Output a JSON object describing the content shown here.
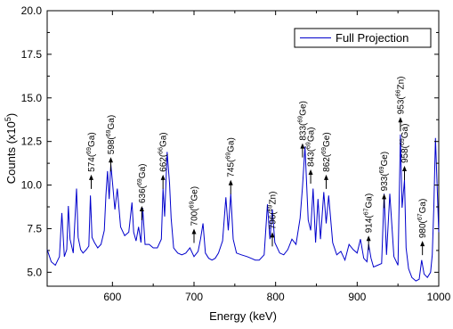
{
  "chart_data": {
    "type": "line",
    "xlabel": "Energy (keV)",
    "ylabel": "Counts (x10",
    "ylabel_sup": "5",
    "ylabel_tail": ")",
    "xlim": [
      520,
      1000
    ],
    "ylim": [
      4.2,
      20.0
    ],
    "xticks": [
      600,
      700,
      800,
      900,
      1000
    ],
    "yticks": [
      5.0,
      7.5,
      10.0,
      12.5,
      15.0,
      17.5,
      20.0
    ],
    "xtick_labels": [
      "600",
      "700",
      "800",
      "900",
      "1000"
    ],
    "ytick_labels": [
      "5.0",
      "7.5",
      "10.0",
      "12.5",
      "15.0",
      "17.5",
      "20.0"
    ],
    "line_color": "#0000cc",
    "series": [
      {
        "name": "Full Projection",
        "x": [
          520,
          525,
          530,
          535,
          538,
          541,
          544,
          546,
          548,
          552,
          556,
          558,
          561,
          564,
          568,
          571,
          573,
          575,
          578,
          582,
          586,
          590,
          592,
          594,
          596,
          598,
          600,
          603,
          606,
          610,
          615,
          620,
          624,
          626,
          629,
          632,
          635,
          637,
          640,
          645,
          650,
          655,
          660,
          662,
          664,
          667,
          670,
          672,
          675,
          680,
          685,
          690,
          695,
          700,
          705,
          708,
          711,
          714,
          718,
          722,
          726,
          730,
          735,
          739,
          742,
          745,
          748,
          752,
          758,
          765,
          770,
          775,
          780,
          786,
          790,
          793,
          796,
          799,
          805,
          810,
          815,
          820,
          825,
          830,
          833,
          836,
          840,
          843,
          846,
          849,
          852,
          855,
          859,
          862,
          865,
          870,
          875,
          880,
          885,
          890,
          895,
          900,
          904,
          908,
          912,
          914,
          917,
          920,
          925,
          930,
          933,
          936,
          940,
          945,
          950,
          953,
          955,
          958,
          960,
          963,
          967,
          972,
          976,
          979,
          982,
          986,
          990,
          992,
          994,
          996,
          1000
        ],
        "y": [
          6.3,
          5.6,
          5.4,
          5.9,
          8.4,
          5.9,
          6.3,
          8.8,
          6.9,
          6.1,
          9.8,
          7.0,
          6.3,
          6.1,
          6.3,
          6.5,
          9.4,
          7.0,
          6.7,
          6.4,
          6.6,
          7.4,
          9.4,
          10.8,
          9.2,
          11.2,
          10.2,
          8.6,
          9.8,
          7.6,
          7.1,
          7.3,
          9.0,
          7.3,
          6.8,
          7.6,
          6.7,
          8.7,
          6.6,
          6.6,
          6.4,
          6.4,
          6.9,
          9.8,
          8.2,
          11.9,
          10.1,
          8.1,
          6.4,
          6.1,
          6.0,
          6.1,
          6.4,
          5.9,
          6.2,
          6.9,
          7.8,
          6.1,
          5.8,
          5.7,
          5.8,
          6.1,
          6.8,
          9.3,
          7.4,
          9.5,
          6.9,
          6.1,
          6.0,
          5.9,
          5.8,
          5.7,
          5.7,
          6.0,
          8.9,
          6.9,
          8.6,
          6.7,
          6.1,
          6.0,
          6.3,
          6.9,
          6.6,
          8.1,
          9.9,
          12.2,
          8.0,
          7.4,
          9.8,
          6.7,
          9.2,
          6.9,
          9.6,
          7.8,
          9.4,
          6.7,
          6.0,
          6.2,
          5.7,
          6.6,
          6.3,
          6.1,
          6.9,
          5.8,
          5.6,
          6.6,
          5.8,
          5.3,
          5.4,
          5.5,
          9.5,
          6.0,
          9.5,
          5.9,
          5.4,
          12.9,
          8.7,
          10.3,
          6.4,
          5.2,
          4.7,
          4.5,
          4.6,
          5.7,
          4.9,
          4.7,
          5.0,
          6.0,
          8.8,
          12.7,
          7.3
        ]
      }
    ],
    "annotations": [
      {
        "energy": "574",
        "iso": "Ga",
        "mass": "69",
        "x": 574,
        "y_tip": 10.6
      },
      {
        "energy": "598",
        "iso": "Ga",
        "mass": "69",
        "x": 598,
        "y_tip": 11.6
      },
      {
        "energy": "636",
        "iso": "Ga",
        "mass": "69",
        "x": 636,
        "y_tip": 8.8
      },
      {
        "energy": "662",
        "iso": "Ga",
        "mass": "66",
        "x": 662,
        "y_tip": 10.6
      },
      {
        "energy": "700",
        "iso": "Ge",
        "mass": "69",
        "x": 700,
        "y_tip": 7.5
      },
      {
        "energy": "745",
        "iso": "Ga",
        "mass": "69",
        "x": 745,
        "y_tip": 10.3
      },
      {
        "energy": "796",
        "iso": "Zn",
        "mass": "69",
        "x": 796,
        "y_tip": 7.3
      },
      {
        "energy": "833",
        "iso": "Ge",
        "mass": "69",
        "x": 833,
        "y_tip": 12.4
      },
      {
        "energy": "843",
        "iso": "Ga",
        "mass": "69",
        "x": 843,
        "y_tip": 10.9
      },
      {
        "energy": "862",
        "iso": "Ge",
        "mass": "69",
        "x": 862,
        "y_tip": 10.6
      },
      {
        "energy": "914",
        "iso": "Ga",
        "mass": "67",
        "x": 914,
        "y_tip": 7.1
      },
      {
        "energy": "933",
        "iso": "Ge",
        "mass": "69",
        "x": 933,
        "y_tip": 9.5
      },
      {
        "energy": "953",
        "iso": "Zn",
        "mass": "66",
        "x": 953,
        "y_tip": 13.9
      },
      {
        "energy": "958",
        "iso": "Ga",
        "mass": "69",
        "x": 958,
        "y_tip": 11.1
      },
      {
        "energy": "980",
        "iso": "Ga",
        "mass": "67",
        "x": 980,
        "y_tip": 6.8
      }
    ],
    "legend": {
      "position": "top-right",
      "label": "Full Projection"
    },
    "grid": false
  }
}
